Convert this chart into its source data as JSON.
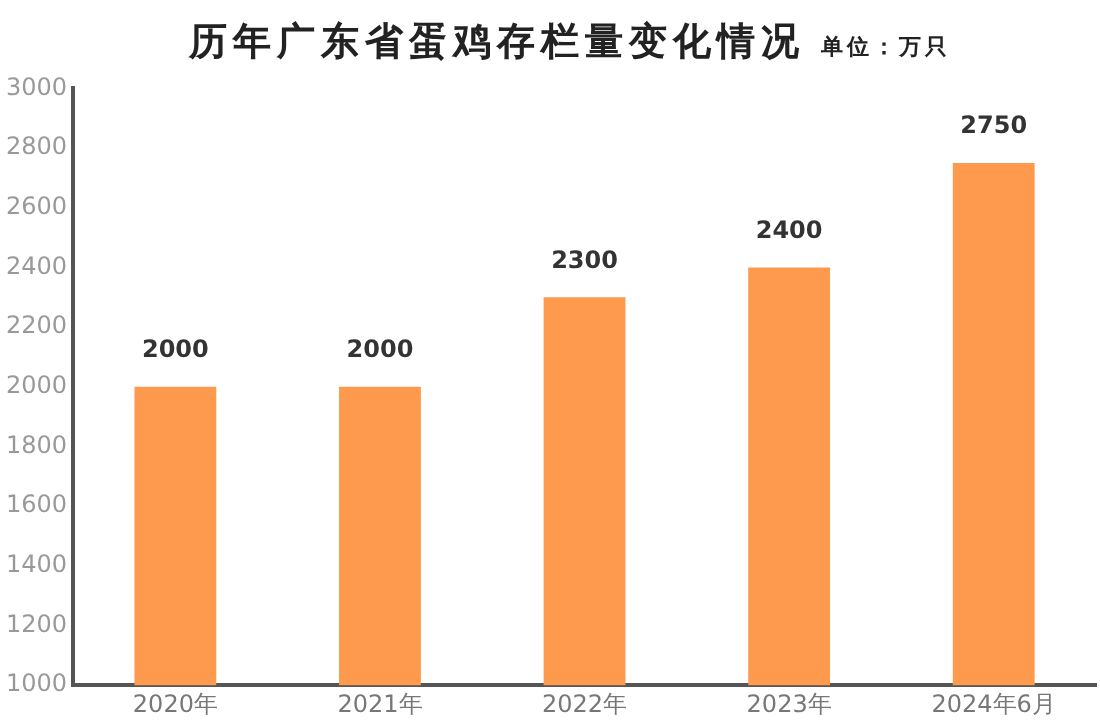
{
  "chart_data": {
    "type": "bar",
    "title": "历年广东省蛋鸡存栏量变化情况",
    "subtitle": "单位：万只",
    "categories": [
      "2020年",
      "2021年",
      "2022年",
      "2023年",
      "2024年6月"
    ],
    "values": [
      2000,
      2000,
      2300,
      2400,
      2750
    ],
    "color": "#fd9a4e",
    "ylim": [
      1000,
      3000
    ],
    "yticks": [
      1000,
      1200,
      1400,
      1600,
      1800,
      2000,
      2200,
      2400,
      2600,
      2800,
      3000
    ],
    "grid": false,
    "legend": false,
    "data_labels": true
  }
}
